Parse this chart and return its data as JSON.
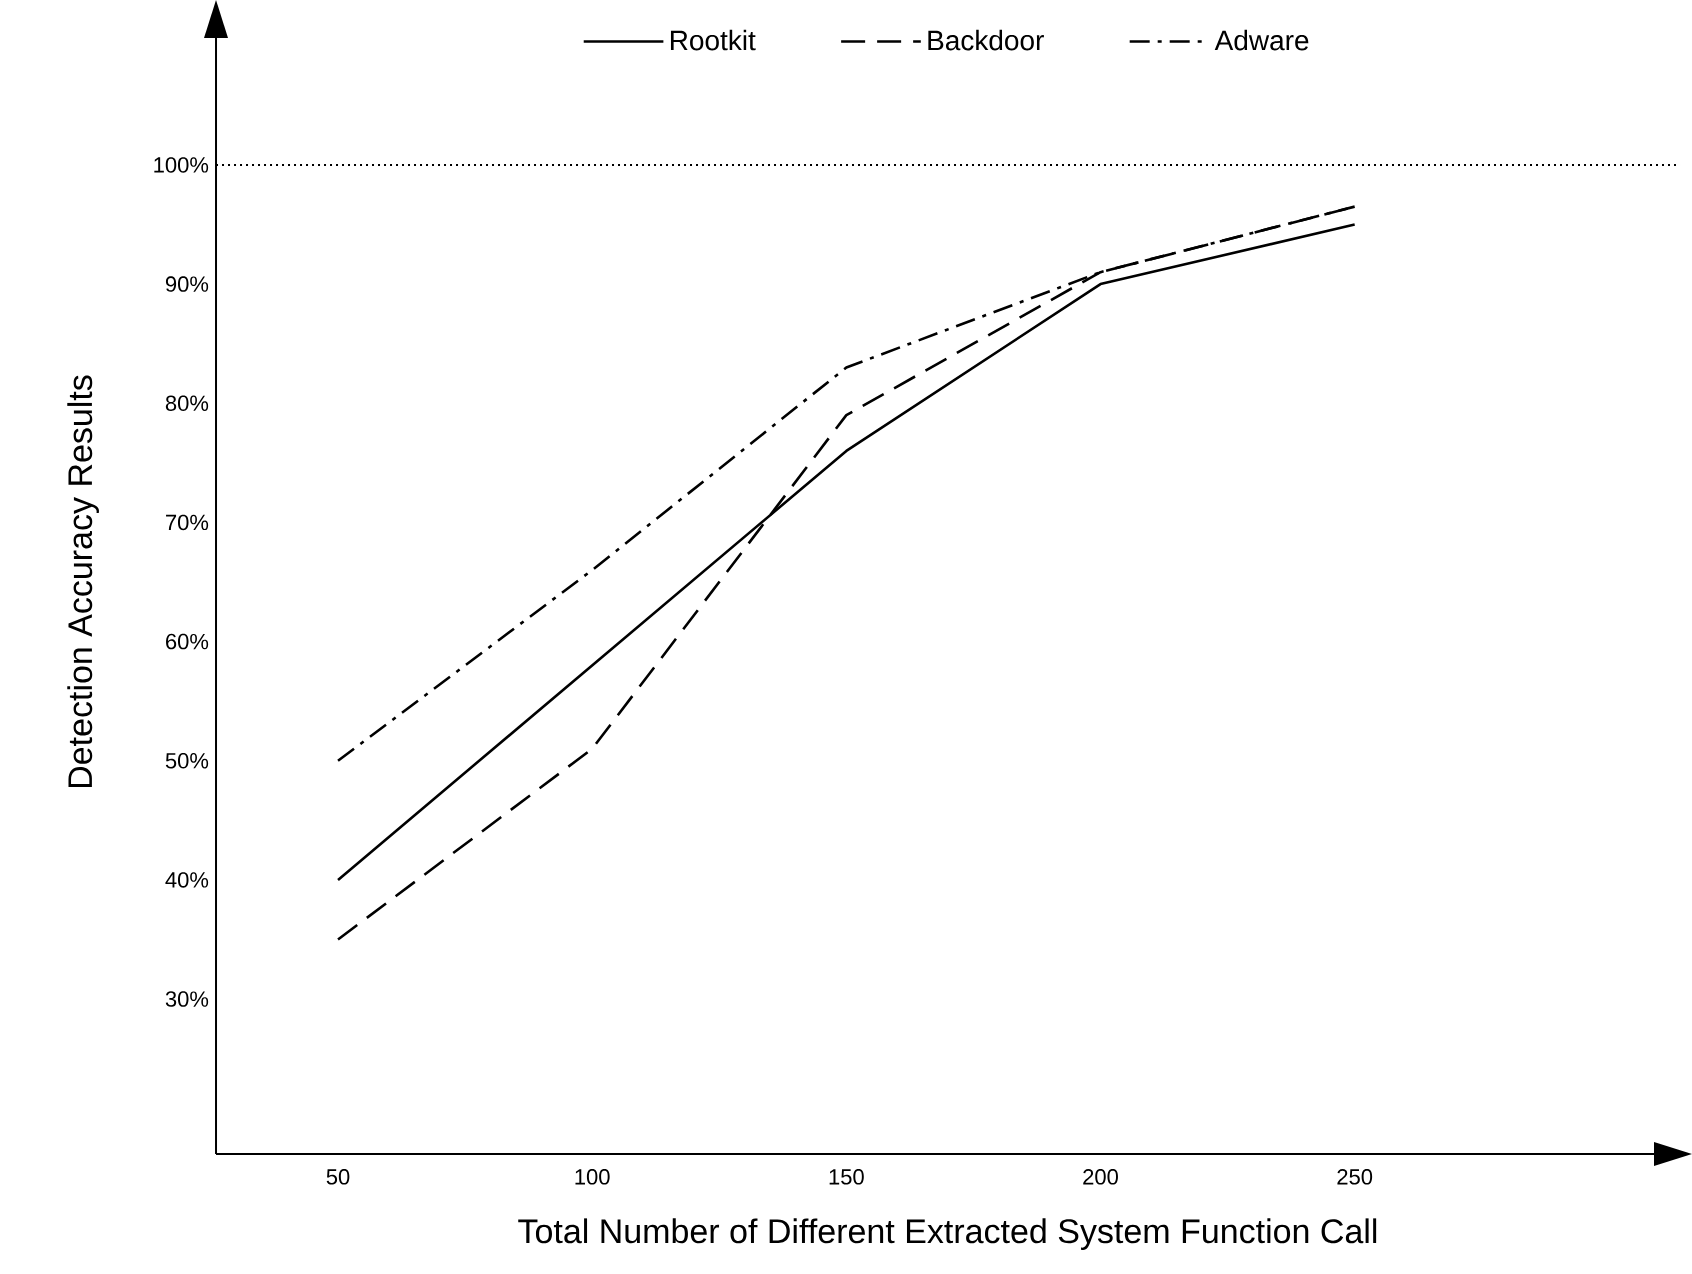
{
  "chart_data": {
    "type": "line",
    "xlabel": "Total Number of Different Extracted System Function Call",
    "ylabel": "Detection Accuracy Results",
    "x": [
      50,
      100,
      150,
      200,
      250
    ],
    "series": [
      {
        "name": "Rootkit",
        "color": "#000000",
        "line_style": "solid",
        "values": [
          40,
          58,
          76,
          90,
          95
        ]
      },
      {
        "name": "Backdoor",
        "color": "#000000",
        "line_style": "dashed",
        "values": [
          35,
          51,
          79,
          91,
          96.5
        ]
      },
      {
        "name": "Adware",
        "color": "#000000",
        "line_style": "dashdot",
        "values": [
          50,
          66,
          83,
          91,
          96.5
        ]
      }
    ],
    "xlim": [
      26,
      314
    ],
    "ylim": [
      17,
      113
    ],
    "xticks": [
      50,
      100,
      150,
      200,
      250
    ],
    "yticks": [
      {
        "value": 30,
        "label": "30%"
      },
      {
        "value": 40,
        "label": "40%"
      },
      {
        "value": 50,
        "label": "50%"
      },
      {
        "value": 60,
        "label": "60%"
      },
      {
        "value": 70,
        "label": "70%"
      },
      {
        "value": 80,
        "label": "80%"
      },
      {
        "value": 90,
        "label": "90%"
      },
      {
        "value": 100,
        "label": "100%"
      }
    ],
    "ref_lines": [
      {
        "axis": "y",
        "value": 100,
        "line_style": "dotted"
      }
    ],
    "grid": false,
    "legend": "top",
    "marker": "none"
  }
}
